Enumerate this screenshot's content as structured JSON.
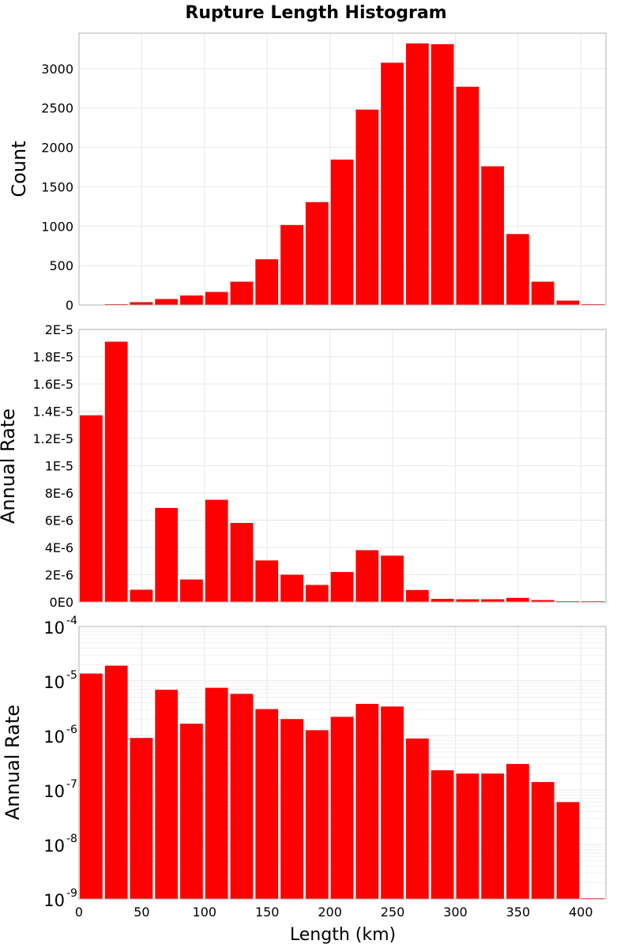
{
  "chart_data": [
    {
      "type": "bar",
      "title": "Rupture Length Histogram",
      "ylabel": "Count",
      "xlabel": "",
      "bin_width": 20,
      "x": [
        10,
        30,
        50,
        70,
        90,
        110,
        130,
        150,
        170,
        190,
        210,
        230,
        250,
        270,
        290,
        310,
        330,
        350,
        370,
        390,
        410
      ],
      "values": [
        5,
        10,
        35,
        75,
        120,
        165,
        295,
        580,
        1015,
        1305,
        1845,
        2480,
        3075,
        3320,
        3310,
        2770,
        1760,
        900,
        295,
        55,
        0
      ],
      "xlim": [
        0,
        420
      ],
      "ylim": [
        0,
        3450
      ],
      "yticks": [
        0,
        500,
        1000,
        1500,
        2000,
        2500,
        3000
      ],
      "yticklabels": [
        "0",
        "500",
        "1000",
        "1500",
        "2000",
        "2500",
        "3000"
      ],
      "grid": true
    },
    {
      "type": "bar",
      "ylabel": "Annual Rate",
      "xlabel": "",
      "bin_width": 20,
      "x": [
        10,
        30,
        50,
        70,
        90,
        110,
        130,
        150,
        170,
        190,
        210,
        230,
        250,
        270,
        290,
        310,
        330,
        350,
        370,
        390,
        410
      ],
      "values": [
        1.37e-05,
        1.91e-05,
        9e-07,
        6.9e-06,
        1.65e-06,
        7.5e-06,
        5.8e-06,
        3.05e-06,
        2e-06,
        1.25e-06,
        2.2e-06,
        3.8e-06,
        3.4e-06,
        8.8e-07,
        2.3e-07,
        2e-07,
        2e-07,
        3e-07,
        1.4e-07,
        6e-08,
        0
      ],
      "xlim": [
        0,
        420
      ],
      "ylim": [
        0,
        2e-05
      ],
      "yticks": [
        0,
        2e-06,
        4e-06,
        6e-06,
        8e-06,
        1e-05,
        1.2e-05,
        1.4e-05,
        1.6e-05,
        1.8e-05,
        2e-05
      ],
      "yticklabels": [
        "0E0",
        "2E-6",
        "4E-6",
        "6E-6",
        "8E-6",
        "1E-5",
        "1.2E-5",
        "1.4E-5",
        "1.6E-5",
        "1.8E-5",
        "2E-5"
      ],
      "grid": true
    },
    {
      "type": "bar",
      "ylabel": "Annual Rate",
      "xlabel": "Length (km)",
      "yscale": "log",
      "bin_width": 20,
      "x": [
        10,
        30,
        50,
        70,
        90,
        110,
        130,
        150,
        170,
        190,
        210,
        230,
        250,
        270,
        290,
        310,
        330,
        350,
        370,
        390,
        410
      ],
      "values": [
        1.37e-05,
        1.91e-05,
        9e-07,
        6.9e-06,
        1.65e-06,
        7.5e-06,
        5.8e-06,
        3.05e-06,
        2e-06,
        1.25e-06,
        2.2e-06,
        3.8e-06,
        3.4e-06,
        8.8e-07,
        2.3e-07,
        2e-07,
        2e-07,
        3e-07,
        1.4e-07,
        6e-08,
        0
      ],
      "xlim": [
        0,
        420
      ],
      "ylim": [
        1e-09,
        0.0001
      ],
      "ytick_base": "10",
      "ytick_exponents": [
        "-9",
        "-8",
        "-7",
        "-6",
        "-5",
        "-4"
      ],
      "xticks": [
        0,
        50,
        100,
        150,
        200,
        250,
        300,
        350,
        400
      ],
      "xticklabels": [
        "0",
        "50",
        "100",
        "150",
        "200",
        "250",
        "300",
        "350",
        "400"
      ],
      "grid": true
    }
  ],
  "colors": {
    "bar": "#ff0000",
    "grid": "#e8e8e8",
    "frame": "#b0b0b0"
  }
}
